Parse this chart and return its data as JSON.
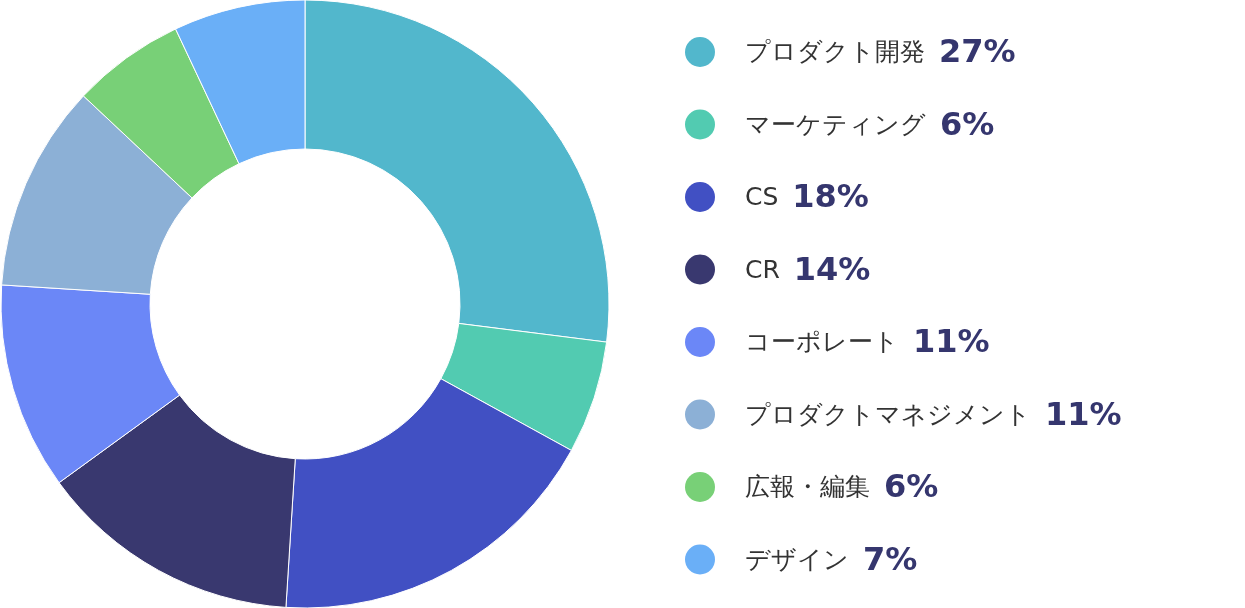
{
  "chart_data": {
    "type": "donut",
    "categories": [
      "プロダクト開発",
      "マーケティング",
      "CS",
      "CR",
      "コーポレート",
      "プロダクトマネジメント",
      "広報・編集",
      "デザイン"
    ],
    "values": [
      27,
      6,
      18,
      14,
      11,
      11,
      6,
      7
    ],
    "colors": [
      "#52b7cc",
      "#52cbb1",
      "#4150c3",
      "#39386f",
      "#6b87f7",
      "#8cb0d6",
      "#78d077",
      "#6aaff7"
    ],
    "value_labels": [
      "27%",
      "6%",
      "18%",
      "14%",
      "11%",
      "11%",
      "6%",
      "7%"
    ],
    "legend": "right"
  }
}
